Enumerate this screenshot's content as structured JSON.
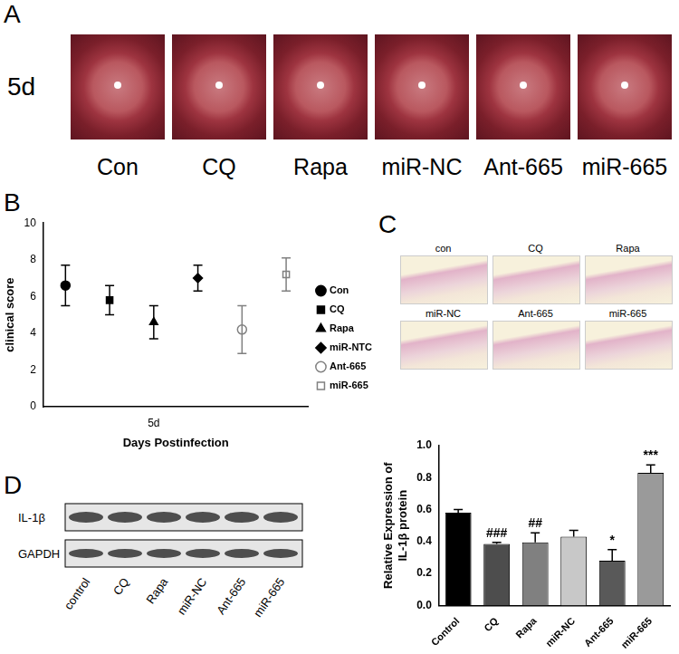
{
  "panel_a": {
    "letter": "A",
    "row_label": "5d",
    "captions": [
      "Con",
      "CQ",
      "Rapa",
      "miR-NC",
      "Ant-665",
      "miR-665"
    ]
  },
  "chart_data": [
    {
      "panel": "B",
      "type": "scatter",
      "x_label": "Days Postinfection",
      "y_label": "clinical score",
      "categories": [
        null,
        null,
        "5d",
        null,
        null,
        null
      ],
      "ylim": [
        0,
        10
      ],
      "yticks": [
        0,
        2,
        4,
        6,
        8,
        10
      ],
      "grid": false,
      "legend": "right",
      "series": [
        {
          "name": "Con",
          "color": "#000000",
          "marker": "circle",
          "values": [
            6.6,
            null,
            null,
            null,
            null,
            null
          ],
          "errors": [
            1.1,
            null,
            null,
            null,
            null,
            null
          ]
        },
        {
          "name": "CQ",
          "color": "#000000",
          "marker": "square",
          "values": [
            null,
            5.8,
            null,
            null,
            null,
            null
          ],
          "errors": [
            null,
            0.8,
            null,
            null,
            null,
            null
          ]
        },
        {
          "name": "Rapa",
          "color": "#000000",
          "marker": "triangle",
          "values": [
            null,
            null,
            4.6,
            null,
            null,
            null
          ],
          "errors": [
            null,
            null,
            0.9,
            null,
            null,
            null
          ]
        },
        {
          "name": "miR-NTC",
          "color": "#000000",
          "marker": "diamond",
          "values": [
            null,
            null,
            null,
            7.0,
            null,
            null
          ],
          "errors": [
            null,
            null,
            null,
            0.7,
            null,
            null
          ]
        },
        {
          "name": "Ant-665",
          "color": "#808080",
          "marker": "open circle",
          "values": [
            null,
            null,
            null,
            null,
            4.2,
            null
          ],
          "errors": [
            null,
            null,
            null,
            null,
            1.3,
            null
          ]
        },
        {
          "name": "miR-665",
          "color": "#808080",
          "marker": "open square",
          "values": [
            null,
            null,
            null,
            null,
            null,
            7.2
          ],
          "errors": [
            null,
            null,
            null,
            null,
            null,
            0.9
          ]
        }
      ]
    },
    {
      "type": "bar",
      "y_label": [
        "Relative Expression of",
        "IL-1β protein"
      ],
      "categories": [
        "Control",
        "CQ",
        "Rapa",
        "miR-NC",
        "Ant-665",
        "miR-665"
      ],
      "values": [
        0.58,
        0.385,
        0.395,
        0.43,
        0.28,
        0.83
      ],
      "errors": [
        0.02,
        0.01,
        0.06,
        0.04,
        0.07,
        0.05
      ],
      "colors": [
        "#000000",
        "#4d4d4d",
        "#808080",
        "#c8c8c8",
        "#595959",
        "#9a9a9a"
      ],
      "ylim": [
        0,
        1
      ],
      "yticks": [
        {
          "value": 0,
          "label": "0.0"
        },
        0.2,
        0.4,
        0.6,
        0.8,
        {
          "value": 1,
          "label": "1.0"
        }
      ],
      "grid": false,
      "annotations": [
        {
          "category": "CQ",
          "text": "###"
        },
        {
          "category": "Rapa",
          "text": "##"
        },
        {
          "category": "Ant-665",
          "text": "*"
        },
        {
          "category": "miR-665",
          "text": "***"
        }
      ]
    }
  ],
  "panel_c": {
    "letter": "C",
    "captions": [
      "con",
      "CQ",
      "Rapa",
      "miR-NC",
      "Ant-665",
      "miR-665"
    ]
  },
  "panel_d_blot": {
    "letter": "D",
    "bands": [
      "IL-1β",
      "GAPDH"
    ],
    "lanes": [
      "control",
      "CQ",
      "Rapa",
      "miR-NC",
      "Ant-665",
      "miR-665"
    ]
  }
}
